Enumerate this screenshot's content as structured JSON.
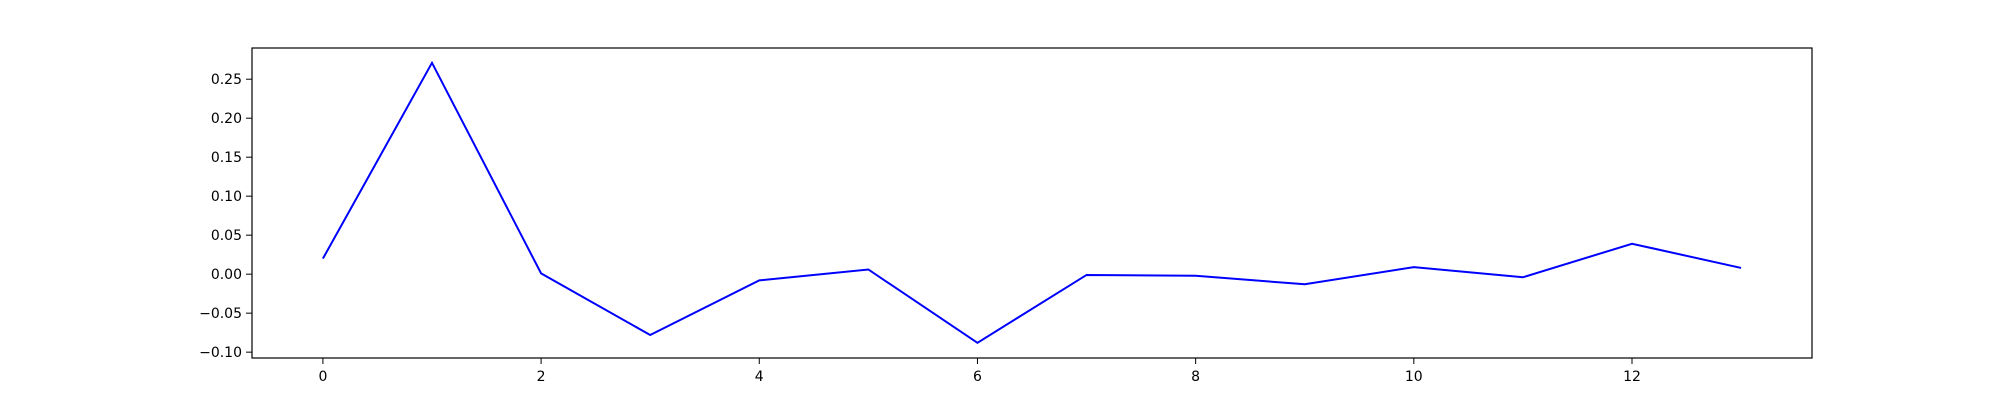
{
  "chart_data": {
    "type": "line",
    "title": "",
    "xlabel": "",
    "ylabel": "",
    "x": [
      0,
      1,
      2,
      3,
      4,
      5,
      6,
      7,
      8,
      9,
      10,
      11,
      12,
      13
    ],
    "series": [
      {
        "values": [
          0.02,
          0.271,
          0.001,
          -0.078,
          -0.008,
          0.006,
          -0.088,
          -0.001,
          -0.002,
          -0.013,
          0.009,
          -0.004,
          0.039,
          0.008
        ],
        "color": "#0000ff"
      }
    ],
    "xlim": [
      -0.65,
      13.65
    ],
    "ylim": [
      -0.1075,
      0.29
    ],
    "x_ticks": [
      0,
      2,
      4,
      6,
      8,
      10,
      12
    ],
    "x_tick_labels": [
      "0",
      "2",
      "4",
      "6",
      "8",
      "10",
      "12"
    ],
    "y_ticks": [
      -0.1,
      -0.05,
      0.0,
      0.05,
      0.1,
      0.15,
      0.2,
      0.25
    ],
    "y_tick_labels": [
      "−0.10",
      "−0.05",
      "0.00",
      "0.05",
      "0.10",
      "0.15",
      "0.20",
      "0.25"
    ],
    "grid": false,
    "legend": "none"
  }
}
